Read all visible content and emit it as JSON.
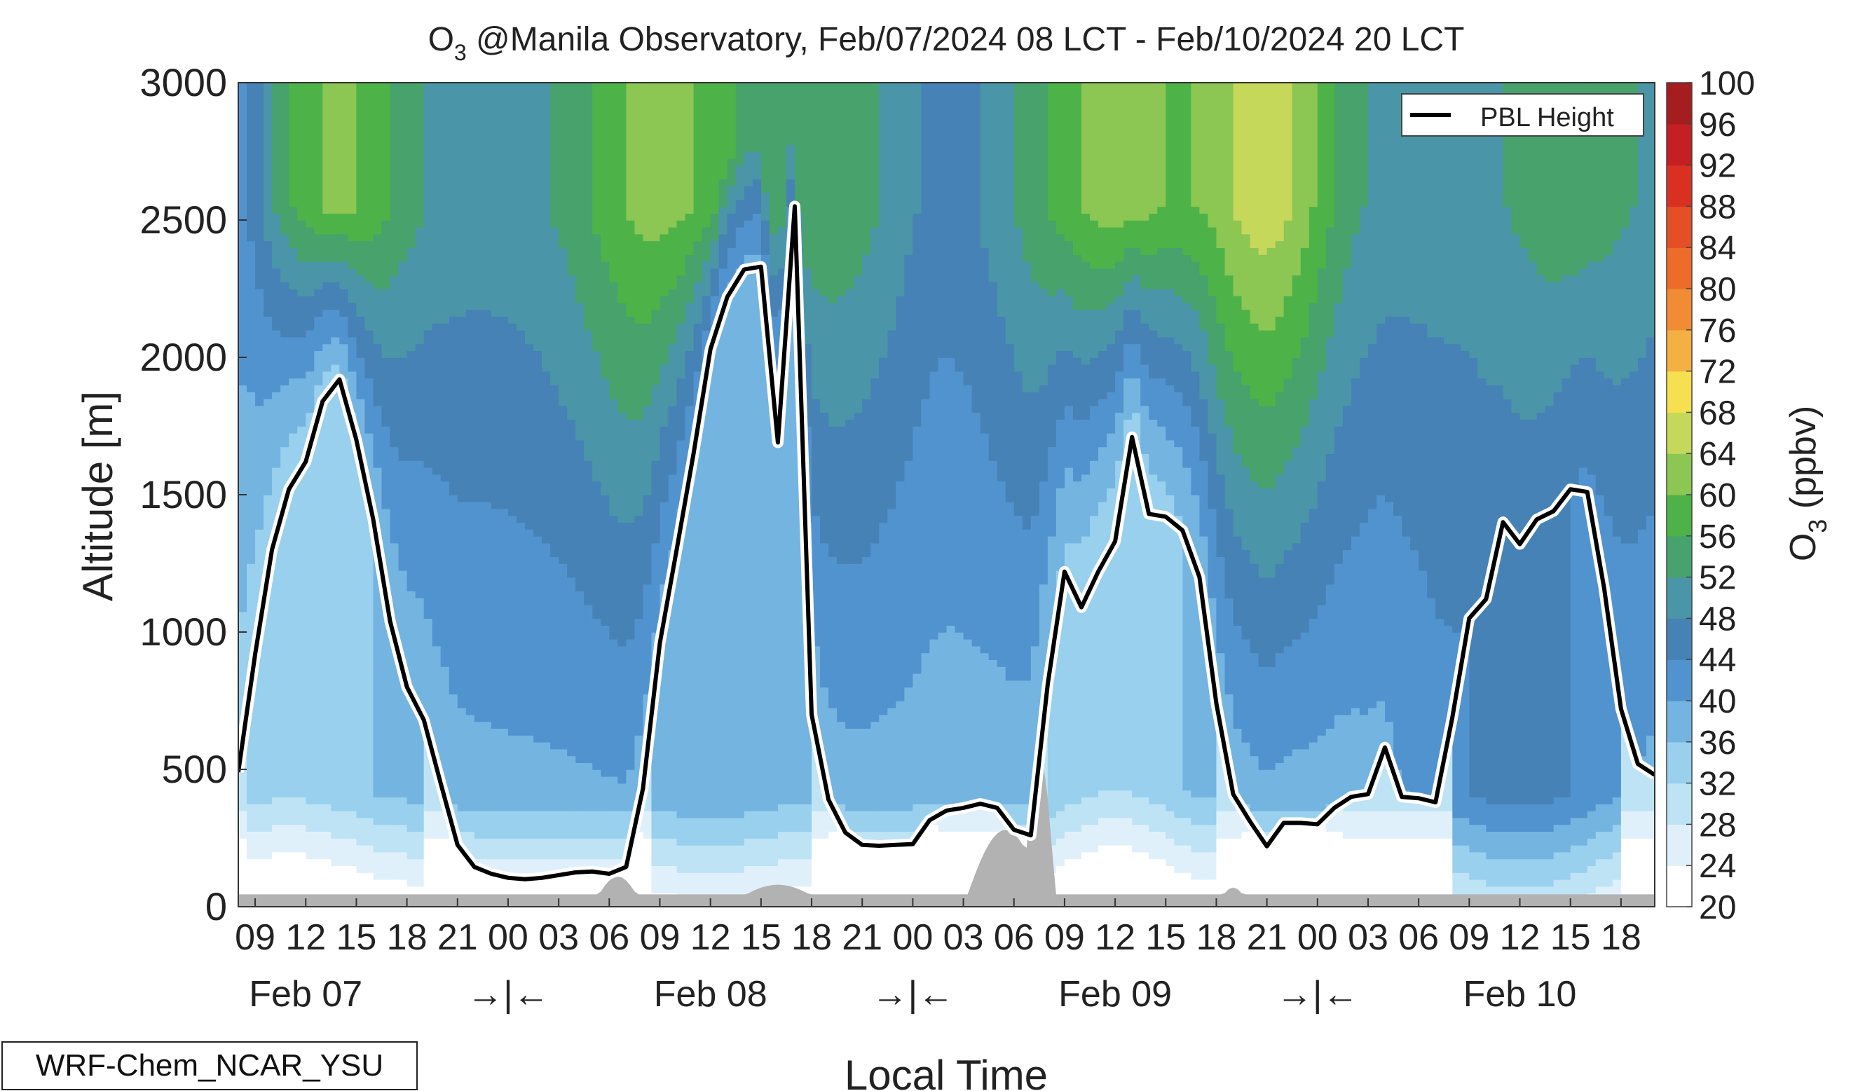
{
  "chart_data": {
    "type": "heatmap",
    "title_species": "O",
    "title_sub": "3",
    "title_rest": " @Manila Observatory, Feb/07/2024 08 LCT - Feb/10/2024 20 LCT",
    "ylabel": "Altitude [m]",
    "xlabel": "Local Time",
    "ylim": [
      0,
      3000
    ],
    "yticks": [
      0,
      500,
      1000,
      1500,
      2000,
      2500,
      3000
    ],
    "x_start_hour": 8,
    "x_end_hour": 92,
    "x_tick_labels": [
      {
        "hour": 9,
        "label": "09"
      },
      {
        "hour": 12,
        "label": "12"
      },
      {
        "hour": 15,
        "label": "15"
      },
      {
        "hour": 18,
        "label": "18"
      },
      {
        "hour": 21,
        "label": "21"
      },
      {
        "hour": 24,
        "label": "00"
      },
      {
        "hour": 27,
        "label": "03"
      },
      {
        "hour": 30,
        "label": "06"
      },
      {
        "hour": 33,
        "label": "09"
      },
      {
        "hour": 36,
        "label": "12"
      },
      {
        "hour": 39,
        "label": "15"
      },
      {
        "hour": 42,
        "label": "18"
      },
      {
        "hour": 45,
        "label": "21"
      },
      {
        "hour": 48,
        "label": "00"
      },
      {
        "hour": 51,
        "label": "03"
      },
      {
        "hour": 54,
        "label": "06"
      },
      {
        "hour": 57,
        "label": "09"
      },
      {
        "hour": 60,
        "label": "12"
      },
      {
        "hour": 63,
        "label": "15"
      },
      {
        "hour": 66,
        "label": "18"
      },
      {
        "hour": 69,
        "label": "21"
      },
      {
        "hour": 72,
        "label": "00"
      },
      {
        "hour": 75,
        "label": "03"
      },
      {
        "hour": 78,
        "label": "06"
      },
      {
        "hour": 81,
        "label": "09"
      },
      {
        "hour": 84,
        "label": "12"
      },
      {
        "hour": 87,
        "label": "15"
      },
      {
        "hour": 90,
        "label": "18"
      }
    ],
    "day_labels": [
      {
        "hour": 12,
        "label": "Feb 07"
      },
      {
        "hour": 36,
        "label": "Feb 08"
      },
      {
        "hour": 60,
        "label": "Feb 09"
      },
      {
        "hour": 84,
        "label": "Feb 10"
      }
    ],
    "night_markers": [
      {
        "hour": 24,
        "label": "→|←"
      },
      {
        "hour": 48,
        "label": "→|←"
      },
      {
        "hour": 72,
        "label": "→|←"
      }
    ],
    "colorbar": {
      "label_species": "O",
      "label_sub": "3",
      "label_rest": " (ppbv)",
      "levels": [
        20,
        24,
        28,
        32,
        36,
        40,
        44,
        48,
        52,
        56,
        60,
        64,
        68,
        72,
        76,
        80,
        84,
        88,
        92,
        96,
        100
      ],
      "colors": [
        "#ffffff",
        "#e0f0fa",
        "#bde3f5",
        "#98d0ee",
        "#74b4e0",
        "#5193cf",
        "#4682b5",
        "#4a96a8",
        "#47a26c",
        "#4db348",
        "#8cc653",
        "#c6d85a",
        "#f6e050",
        "#f4b042",
        "#f28c34",
        "#ed6c2a",
        "#e44f25",
        "#d93022",
        "#c41f22",
        "#a51d1f"
      ]
    },
    "legend": {
      "label": "PBL Height",
      "placement": "top-right"
    },
    "pbl_height": {
      "hours": [
        8,
        9,
        10,
        11,
        12,
        13,
        14,
        15,
        16,
        17,
        18,
        19,
        20,
        21,
        22,
        23,
        24,
        25,
        26,
        27,
        28,
        29,
        30,
        31,
        32,
        33,
        34,
        35,
        36,
        37,
        38,
        39,
        40,
        41,
        42,
        43,
        44,
        45,
        46,
        47,
        48,
        49,
        50,
        51,
        52,
        53,
        54,
        55,
        56,
        57,
        58,
        59,
        60,
        61,
        62,
        63,
        64,
        65,
        66,
        67,
        68,
        69,
        70,
        71,
        72,
        73,
        74,
        75,
        76,
        77,
        78,
        79,
        80,
        81,
        82,
        83,
        84,
        85,
        86,
        87,
        88,
        89,
        90,
        91,
        92
      ],
      "values": [
        490,
        920,
        1300,
        1520,
        1620,
        1840,
        1920,
        1700,
        1410,
        1040,
        800,
        680,
        450,
        225,
        145,
        120,
        105,
        100,
        105,
        115,
        125,
        128,
        120,
        145,
        430,
        960,
        1300,
        1650,
        2030,
        2220,
        2320,
        2330,
        1690,
        2550,
        700,
        390,
        270,
        225,
        222,
        225,
        228,
        315,
        350,
        360,
        375,
        360,
        280,
        260,
        810,
        1220,
        1090,
        1220,
        1330,
        1710,
        1430,
        1420,
        1370,
        1200,
        740,
        410,
        310,
        220,
        305,
        305,
        300,
        360,
        400,
        410,
        580,
        400,
        395,
        380,
        690,
        1050,
        1120,
        1400,
        1320,
        1410,
        1440,
        1520,
        1510,
        1160,
        720,
        520,
        480
      ]
    },
    "terrain_fill": {
      "color": "#b2b2b2"
    },
    "model_label": "WRF-Chem_NCAR_YSU"
  }
}
